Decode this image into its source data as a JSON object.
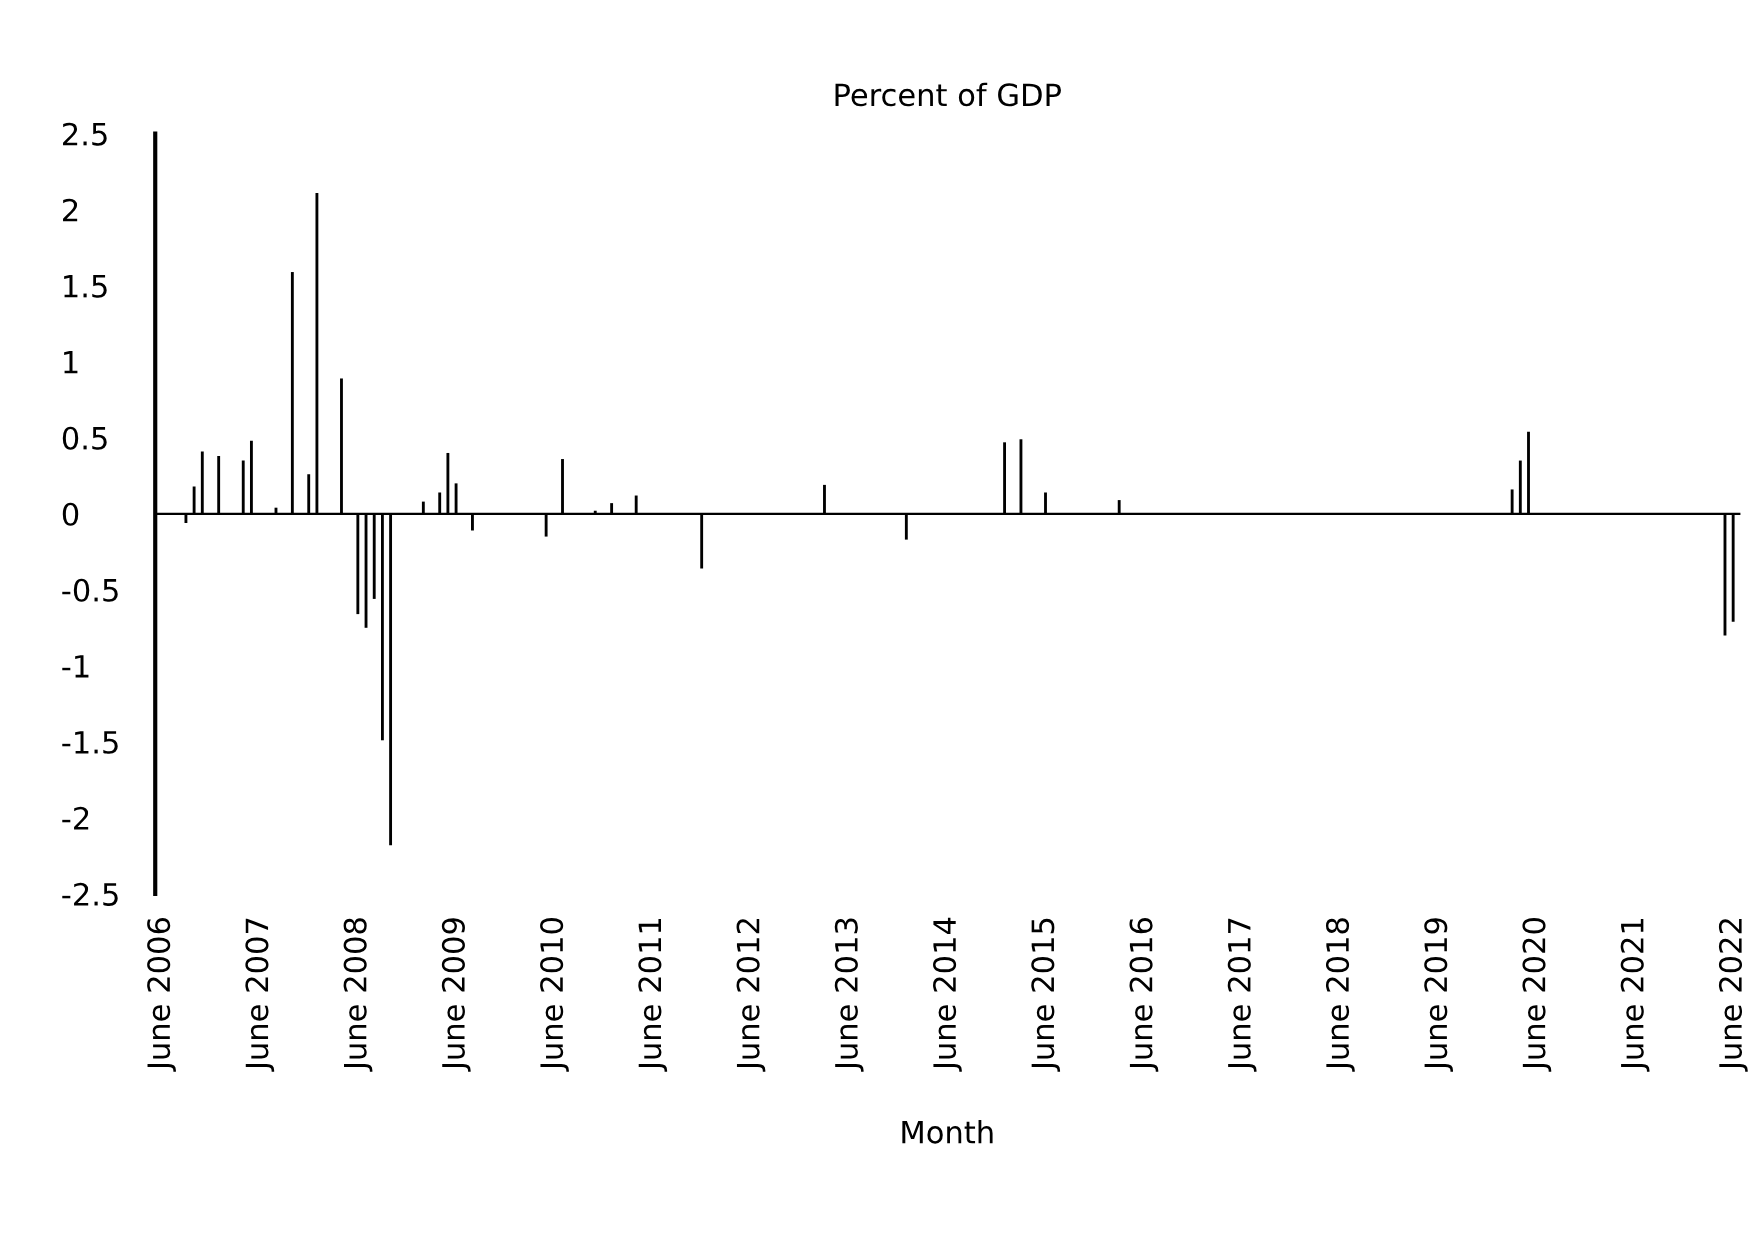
{
  "chart_data": {
    "type": "bar",
    "title": "Percent of GDP",
    "xlabel": "Month",
    "categories": [
      "June 2006",
      null,
      null,
      null,
      null,
      null,
      null,
      null,
      null,
      null,
      null,
      null,
      "June 2007",
      null,
      null,
      null,
      null,
      null,
      null,
      null,
      null,
      null,
      null,
      null,
      "June 2008",
      null,
      null,
      null,
      null,
      null,
      null,
      null,
      null,
      null,
      null,
      null,
      "June 2009",
      null,
      null,
      null,
      null,
      null,
      null,
      null,
      null,
      null,
      null,
      null,
      "June 2010",
      null,
      null,
      null,
      null,
      null,
      null,
      null,
      null,
      null,
      null,
      null,
      "June 2011",
      null,
      null,
      null,
      null,
      null,
      null,
      null,
      null,
      null,
      null,
      null,
      "June 2012",
      null,
      null,
      null,
      null,
      null,
      null,
      null,
      null,
      null,
      null,
      null,
      "June 2013",
      null,
      null,
      null,
      null,
      null,
      null,
      null,
      null,
      null,
      null,
      null,
      "June 2014",
      null,
      null,
      null,
      null,
      null,
      null,
      null,
      null,
      null,
      null,
      null,
      "June 2015",
      null,
      null,
      null,
      null,
      null,
      null,
      null,
      null,
      null,
      null,
      null,
      "June 2016",
      null,
      null,
      null,
      null,
      null,
      null,
      null,
      null,
      null,
      null,
      null,
      "June 2017",
      null,
      null,
      null,
      null,
      null,
      null,
      null,
      null,
      null,
      null,
      null,
      "June 2018",
      null,
      null,
      null,
      null,
      null,
      null,
      null,
      null,
      null,
      null,
      null,
      "June 2019",
      null,
      null,
      null,
      null,
      null,
      null,
      null,
      null,
      null,
      null,
      null,
      "June 2020",
      null,
      null,
      null,
      null,
      null,
      null,
      null,
      null,
      null,
      null,
      null,
      "June 2021",
      null,
      null,
      null,
      null,
      null,
      null,
      null,
      null,
      null,
      null,
      null,
      "June 2022"
    ],
    "values": [
      0,
      0,
      0,
      -0.06,
      0.18,
      0.41,
      0,
      0.38,
      0,
      0,
      0.35,
      0.48,
      0,
      0,
      0.04,
      0,
      1.59,
      0,
      0.26,
      2.11,
      0,
      0,
      0.89,
      0,
      -0.66,
      -0.75,
      -0.56,
      -1.49,
      -2.18,
      0,
      0,
      0,
      0.08,
      0,
      0.14,
      0.4,
      0.2,
      0,
      -0.11,
      0,
      0,
      0,
      0,
      0,
      0,
      0,
      0,
      -0.15,
      0,
      0.36,
      0,
      0,
      0,
      0.02,
      0,
      0.07,
      0,
      0,
      0.12,
      0,
      0,
      0,
      0,
      0,
      0,
      0,
      -0.36,
      0,
      0,
      0,
      0,
      0,
      0,
      0,
      0,
      0,
      0,
      0,
      0,
      0,
      0,
      0.19,
      0,
      0,
      0,
      0,
      0,
      0,
      0,
      0,
      0,
      -0.17,
      0,
      0,
      0,
      0,
      0,
      0,
      0,
      0,
      0,
      0,
      0,
      0.47,
      0,
      0.49,
      0,
      0,
      0.14,
      0,
      0,
      0,
      0,
      0,
      0,
      0,
      0,
      0.09,
      0,
      0,
      0,
      0,
      0,
      0,
      0,
      0,
      0,
      0,
      0,
      0,
      0,
      0,
      0,
      0,
      0,
      0,
      0,
      0,
      0,
      0,
      0,
      0,
      0,
      0,
      0,
      0,
      0,
      0,
      0,
      0,
      0,
      0,
      0,
      0,
      0,
      0,
      0,
      0,
      0,
      0,
      0,
      0,
      0,
      0,
      0,
      0.16,
      0.35,
      0.54,
      0,
      0,
      0,
      0,
      0,
      0,
      0,
      0,
      0,
      0,
      0,
      0,
      0,
      0,
      0,
      0,
      0,
      0,
      0,
      0,
      0,
      0,
      0,
      -0.8,
      -0.71
    ],
    "color": "#000000",
    "ylim": [
      -2.5,
      2.5
    ],
    "yticks": [
      -2.5,
      -2,
      -1.5,
      -1,
      -0.5,
      0,
      0.5,
      1,
      1.5,
      2,
      2.5
    ]
  }
}
